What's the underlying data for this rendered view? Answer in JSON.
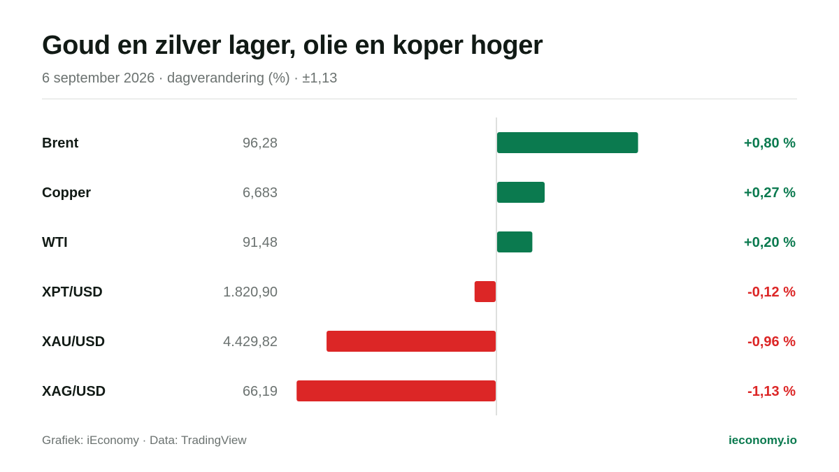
{
  "header": {
    "title": "Goud en zilver lager, olie en koper hoger",
    "subtitle": "6 september 2026 · dagverandering (%) · ±1,13"
  },
  "footer": {
    "source": "Grafiek: iEconomy · Data: TradingView",
    "brand": "ieconomy.io"
  },
  "colors": {
    "positive": "#0b7a4f",
    "negative": "#dc2626",
    "label": "#111a15",
    "price": "#6b7270",
    "axis": "#d4d6d4"
  },
  "chart_data": {
    "type": "bar",
    "orientation": "horizontal",
    "unit": "%",
    "categories": [
      "Brent",
      "Copper",
      "WTI",
      "XPT/USD",
      "XAU/USD",
      "XAG/USD"
    ],
    "prices": [
      "96,28",
      "6,683",
      "91,48",
      "1.820,90",
      "4.429,82",
      "66,19"
    ],
    "values": [
      0.8,
      0.27,
      0.2,
      -0.12,
      -0.96,
      -1.13
    ],
    "value_labels": [
      "+0,80 %",
      "+0,27 %",
      "+0,20 %",
      "-0,12 %",
      "-0,96 %",
      "-1,13 %"
    ],
    "xlim": [
      -1.13,
      1.13
    ]
  }
}
